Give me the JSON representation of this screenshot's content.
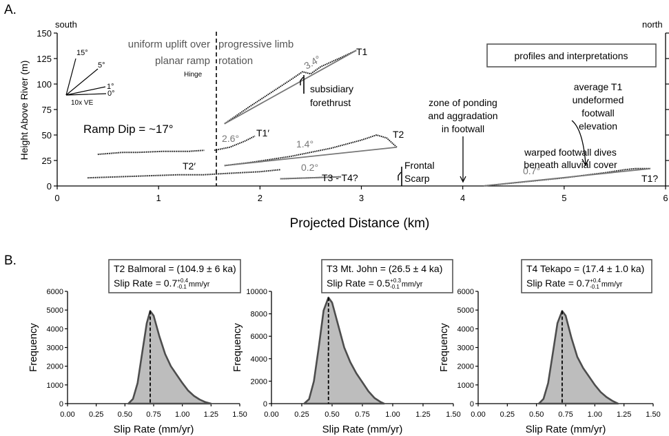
{
  "panel_a": {
    "label": "A.",
    "south": "south",
    "north": "north",
    "ylabel": "Height Above River (m)",
    "xlabel": "Projected Distance (km)",
    "legend_box": "profiles and interpretations",
    "annotations": {
      "uniform_uplift_line1": "uniform uplift over",
      "uniform_uplift_line2": "planar ramp",
      "progressive_line1": "progressive limb",
      "progressive_line2": "rotation",
      "hinge": "Hinge",
      "ramp_dip": "Ramp Dip = ~17°",
      "ve": "10x VE",
      "ang15": "15°",
      "ang5": "5°",
      "ang1": "1°",
      "ang0": "0°",
      "t1": "T1",
      "t1p": "T1′",
      "t2": "T2",
      "t2p": "T2′",
      "t3t4": "T3 - T4?",
      "t1q": "T1?",
      "a34": "3.4°",
      "a26": "2.6°",
      "a14": "1.4°",
      "a02": "0.2°",
      "a07": "0.7°",
      "subsidiary1": "subsidiary",
      "subsidiary2": "forethrust",
      "frontal1": "Frontal",
      "frontal2": "Scarp",
      "zone1": "zone of ponding",
      "zone2": "and aggradation",
      "zone3": "in footwall",
      "warped1": "warped footwall dives",
      "warped2": "beneath alluvial cover",
      "avg1": "average T1",
      "avg2": "undeformed",
      "avg3": "footwall",
      "avg4": "elevation"
    }
  },
  "panel_b": {
    "label": "B.",
    "ylabel": "Frequency",
    "xlabel": "Slip Rate (mm/yr)",
    "boxes": [
      {
        "line1": "T2 Balmoral = (104.9 ± 6 ka)",
        "rate_prefix": "Slip Rate = 0.7",
        "sup": "+0.4",
        "sub": "-0.1",
        "unit": "mm/yr"
      },
      {
        "line1": "T3 Mt. John = (26.5 ± 4 ka)",
        "rate_prefix": "Slip Rate = 0.5",
        "sup": "+0.3",
        "sub": "-0.1",
        "unit": "mm/yr"
      },
      {
        "line1": "T4 Tekapo = (17.4 ± 1.0 ka)",
        "rate_prefix": "Slip Rate = 0.7",
        "sup": "+0.4",
        "sub": "-0.1",
        "unit": "mm/yr"
      }
    ]
  },
  "chart_data": [
    {
      "type": "line",
      "title": "",
      "xlabel": "Projected Distance (km)",
      "ylabel": "Height Above River (m)",
      "xlim": [
        0,
        6
      ],
      "ylim": [
        0,
        150
      ],
      "xticks": [
        "0",
        "1",
        "2",
        "3",
        "4",
        "5",
        "6"
      ],
      "yticks": [
        "0",
        "25",
        "50",
        "75",
        "100",
        "125",
        "150"
      ],
      "hinge_x": 1.57,
      "series": [
        {
          "name": "T1",
          "x": [
            1.65,
            1.9,
            2.1,
            2.3,
            2.42,
            2.5,
            2.6,
            2.8,
            2.95
          ],
          "y": [
            61,
            78,
            91,
            104,
            112,
            110,
            117,
            126,
            133
          ]
        },
        {
          "name": "T1′",
          "x": [
            1.55,
            1.7,
            1.85,
            1.95
          ],
          "y": [
            35,
            38,
            44,
            49
          ]
        },
        {
          "name": "T2",
          "x": [
            1.65,
            1.9,
            2.3,
            2.7,
            3.0,
            3.15,
            3.25,
            3.35
          ],
          "y": [
            20,
            23,
            29,
            37,
            45,
            50,
            47,
            38
          ]
        },
        {
          "name": "T2′",
          "x": [
            0.3,
            0.6,
            0.9,
            1.2,
            1.45,
            1.62,
            1.8,
            2.0,
            2.2
          ],
          "y": [
            8,
            9,
            10,
            11,
            11,
            12,
            13,
            14,
            16
          ]
        },
        {
          "name": "T3 - T4?",
          "x": [
            2.2,
            2.8
          ],
          "y": [
            7,
            9
          ]
        },
        {
          "name": "T1?",
          "x": [
            4.2,
            4.6,
            5.0,
            5.4,
            5.6,
            5.7,
            5.85
          ],
          "y": [
            0,
            4,
            8,
            13,
            16,
            17,
            17
          ]
        },
        {
          "name": "",
          "x": [
            0.4,
            0.65,
            0.8,
            1.05,
            1.3,
            1.45
          ],
          "y": [
            31,
            33,
            33,
            34,
            34,
            35
          ]
        }
      ]
    },
    {
      "type": "area",
      "title": "T2 Balmoral = (104.9 ± 6 ka)",
      "xlabel": "Slip Rate (mm/yr)",
      "ylabel": "Frequency",
      "xlim": [
        0,
        1.5
      ],
      "ylim": [
        0,
        6000
      ],
      "xticks": [
        "0.00",
        "0.25",
        "0.50",
        "0.75",
        "1.00",
        "1.25",
        "1.50"
      ],
      "yticks": [
        "0",
        "1000",
        "2000",
        "3000",
        "4000",
        "5000",
        "6000"
      ],
      "mode": 0.72,
      "x": [
        0.53,
        0.57,
        0.61,
        0.65,
        0.69,
        0.72,
        0.75,
        0.8,
        0.85,
        0.9,
        0.95,
        1.0,
        1.05,
        1.1,
        1.15,
        1.2,
        1.25
      ],
      "y": [
        0,
        250,
        1100,
        2700,
        4300,
        4950,
        4700,
        3600,
        2650,
        2000,
        1550,
        1100,
        700,
        420,
        220,
        80,
        0
      ]
    },
    {
      "type": "area",
      "title": "T3 Mt. John = (26.5 ± 4 ka)",
      "xlabel": "Slip Rate (mm/yr)",
      "ylabel": "Frequency",
      "xlim": [
        0,
        1.5
      ],
      "ylim": [
        0,
        10000
      ],
      "xticks": [
        "0.00",
        "0.25",
        "0.50",
        "0.75",
        "1.00",
        "1.25",
        "1.50"
      ],
      "yticks": [
        "0",
        "2000",
        "4000",
        "6000",
        "8000",
        "10000"
      ],
      "mode": 0.47,
      "x": [
        0.27,
        0.31,
        0.35,
        0.39,
        0.43,
        0.47,
        0.5,
        0.55,
        0.6,
        0.65,
        0.7,
        0.75,
        0.8,
        0.85,
        0.9,
        0.93
      ],
      "y": [
        0,
        400,
        2000,
        5000,
        8300,
        9450,
        9000,
        7000,
        5000,
        3700,
        2700,
        1900,
        1100,
        500,
        150,
        0
      ]
    },
    {
      "type": "area",
      "title": "T4 Tekapo = (17.4 ± 1.0 ka)",
      "xlabel": "Slip Rate (mm/yr)",
      "ylabel": "Frequency",
      "xlim": [
        0,
        1.5
      ],
      "ylim": [
        0,
        6000
      ],
      "xticks": [
        "0.00",
        "0.25",
        "0.50",
        "0.75",
        "1.00",
        "1.25",
        "1.50"
      ],
      "yticks": [
        "0",
        "1000",
        "2000",
        "3000",
        "4000",
        "5000",
        "6000"
      ],
      "mode": 0.72,
      "x": [
        0.52,
        0.56,
        0.6,
        0.64,
        0.68,
        0.72,
        0.75,
        0.8,
        0.85,
        0.9,
        0.95,
        1.0,
        1.05,
        1.1,
        1.15,
        1.2
      ],
      "y": [
        0,
        250,
        1100,
        2700,
        4300,
        4950,
        4700,
        3500,
        2500,
        1900,
        1450,
        1000,
        620,
        350,
        150,
        0
      ]
    }
  ]
}
